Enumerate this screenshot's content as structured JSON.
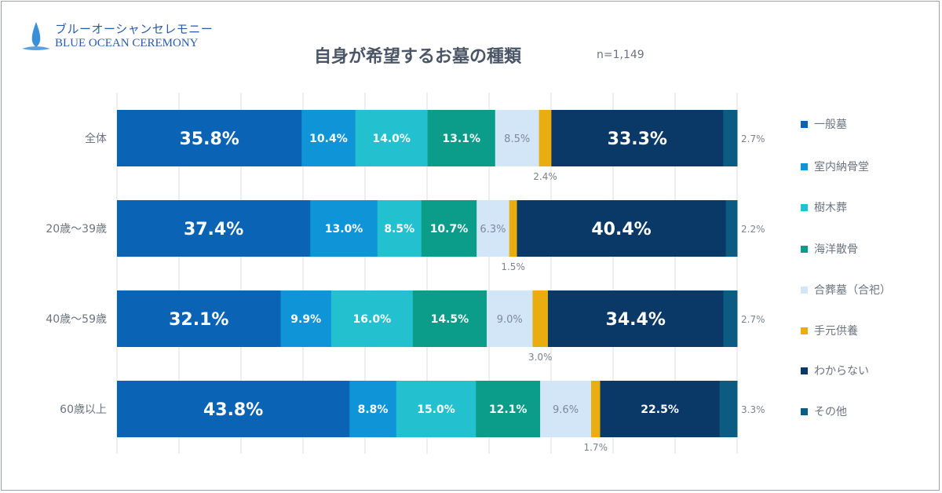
{
  "logo": {
    "jp": "ブルーオーシャンセレモニー",
    "en": "BLUE OCEAN CEREMONY"
  },
  "chart_data": {
    "type": "bar",
    "orientation": "horizontal-stacked-100",
    "title": "自身が希望するお墓の種類",
    "sample_size": "n=1,149",
    "categories": [
      "全体",
      "20歳～39歳",
      "40歳～59歳",
      "60歳以上"
    ],
    "series": [
      {
        "name": "一般墓",
        "color": "#0b63b6",
        "values": [
          35.8,
          37.4,
          32.1,
          43.8
        ]
      },
      {
        "name": "室内納骨堂",
        "color": "#1094d8",
        "values": [
          10.4,
          13.0,
          9.9,
          8.8
        ]
      },
      {
        "name": "樹木葬",
        "color": "#23c1cf",
        "values": [
          14.0,
          8.5,
          16.0,
          15.0
        ]
      },
      {
        "name": "海洋散骨",
        "color": "#0b9c8a",
        "values": [
          13.1,
          10.7,
          14.5,
          12.1
        ]
      },
      {
        "name": "合葬墓（合祀）",
        "color": "#d3e6f7",
        "values": [
          8.5,
          6.3,
          9.0,
          9.6
        ]
      },
      {
        "name": "手元供養",
        "color": "#e9ad10",
        "values": [
          2.4,
          1.5,
          3.0,
          1.7
        ]
      },
      {
        "name": "わからない",
        "color": "#0a3867",
        "values": [
          33.3,
          40.4,
          34.4,
          22.5
        ]
      },
      {
        "name": "その他",
        "color": "#0b5b83",
        "values": [
          2.7,
          2.2,
          2.7,
          3.3
        ]
      }
    ],
    "value_suffix": "%",
    "grid": true,
    "legend": "right"
  }
}
